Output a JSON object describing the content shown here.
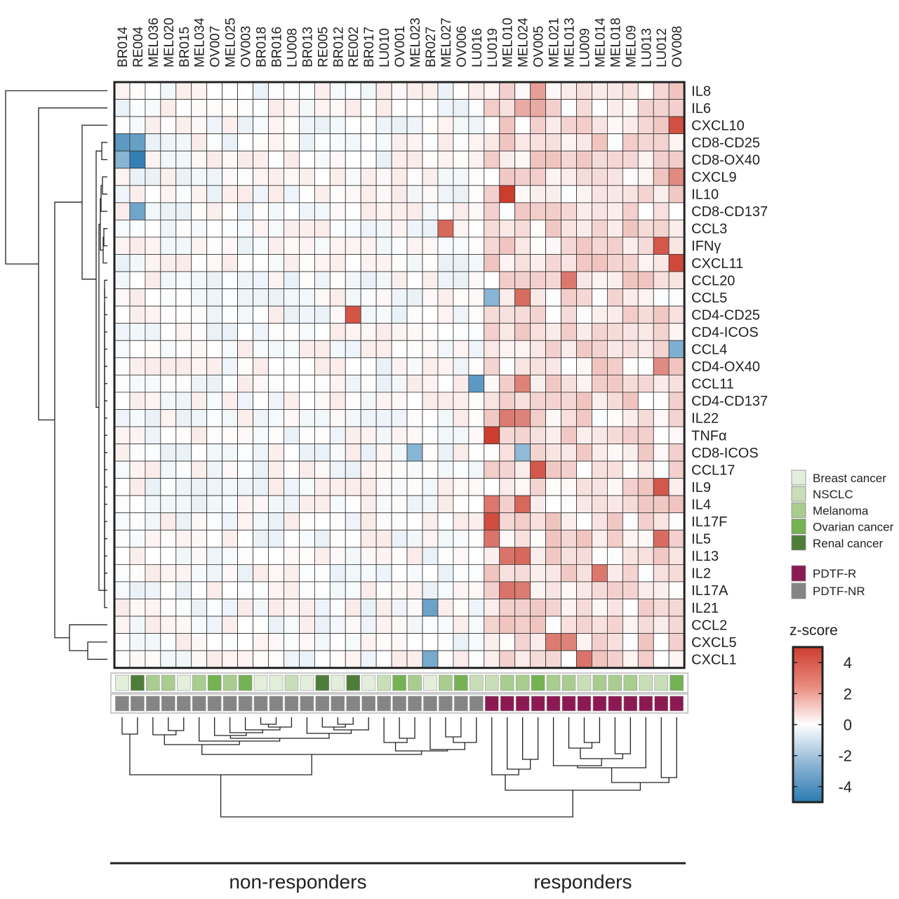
{
  "chart_data": {
    "type": "heatmap",
    "title": "",
    "samples": [
      "BR014",
      "RE004",
      "MEL036",
      "MEL020",
      "BR015",
      "MEL034",
      "OV007",
      "MEL025",
      "OV003",
      "BR018",
      "BR016",
      "LU008",
      "BR013",
      "RE005",
      "BR012",
      "RE002",
      "BR017",
      "LU010",
      "OV001",
      "MEL023",
      "BR027",
      "MEL027",
      "OV006",
      "LU016",
      "LU019",
      "MEL010",
      "MEL024",
      "OV005",
      "MEL021",
      "MEL013",
      "LU009",
      "MEL014",
      "MEL018",
      "MEL09",
      "LU013",
      "LU012",
      "OV008"
    ],
    "features": [
      "IL8",
      "IL6",
      "CXCL10",
      "CD8-CD25",
      "CD8-OX40",
      "CXCL9",
      "IL10",
      "CD8-CD137",
      "CCL3",
      "IFNγ",
      "CXCL11",
      "CCL20",
      "CCL5",
      "CD4-CD25",
      "CD4-ICOS",
      "CCL4",
      "CD4-OX40",
      "CCL11",
      "CD4-CD137",
      "IL22",
      "TNFα",
      "CD8-ICOS",
      "CCL17",
      "IL9",
      "IL4",
      "IL17F",
      "IL5",
      "IL13",
      "IL2",
      "IL17A",
      "IL21",
      "CCL2",
      "CXCL5",
      "CXCL1"
    ],
    "cancer_type": [
      "Breast cancer",
      "Renal cancer",
      "Melanoma",
      "Melanoma",
      "Breast cancer",
      "Melanoma",
      "Ovarian cancer",
      "Melanoma",
      "Ovarian cancer",
      "Breast cancer",
      "Breast cancer",
      "NSCLC",
      "Breast cancer",
      "Renal cancer",
      "Breast cancer",
      "Renal cancer",
      "Breast cancer",
      "NSCLC",
      "Ovarian cancer",
      "Melanoma",
      "Breast cancer",
      "Melanoma",
      "Ovarian cancer",
      "NSCLC",
      "NSCLC",
      "Melanoma",
      "Melanoma",
      "Ovarian cancer",
      "Melanoma",
      "Melanoma",
      "NSCLC",
      "Melanoma",
      "Melanoma",
      "Melanoma",
      "NSCLC",
      "NSCLC",
      "Ovarian cancer"
    ],
    "response": [
      "PDTF-NR",
      "PDTF-NR",
      "PDTF-NR",
      "PDTF-NR",
      "PDTF-NR",
      "PDTF-NR",
      "PDTF-NR",
      "PDTF-NR",
      "PDTF-NR",
      "PDTF-NR",
      "PDTF-NR",
      "PDTF-NR",
      "PDTF-NR",
      "PDTF-NR",
      "PDTF-NR",
      "PDTF-NR",
      "PDTF-NR",
      "PDTF-NR",
      "PDTF-NR",
      "PDTF-NR",
      "PDTF-NR",
      "PDTF-NR",
      "PDTF-NR",
      "PDTF-NR",
      "PDTF-R",
      "PDTF-R",
      "PDTF-R",
      "PDTF-R",
      "PDTF-R",
      "PDTF-R",
      "PDTF-R",
      "PDTF-R",
      "PDTF-R",
      "PDTF-R",
      "PDTF-R",
      "PDTF-R",
      "PDTF-R"
    ],
    "highlights": [
      {
        "feature": "IL8",
        "sample": "OV005",
        "value": 2.5
      },
      {
        "feature": "IL6",
        "sample": "MEL024",
        "value": 2.2
      },
      {
        "feature": "IL6",
        "sample": "OV005",
        "value": 2.2
      },
      {
        "feature": "CXCL10",
        "sample": "OV008",
        "value": 4.5
      },
      {
        "feature": "CD8-CD25",
        "sample": "BR014",
        "value": -3.8
      },
      {
        "feature": "CD8-CD25",
        "sample": "RE004",
        "value": -3.6
      },
      {
        "feature": "CD8-OX40",
        "sample": "BR014",
        "value": -2.8
      },
      {
        "feature": "CD8-OX40",
        "sample": "RE004",
        "value": -4.8
      },
      {
        "feature": "CXCL9",
        "sample": "OV008",
        "value": 3.0
      },
      {
        "feature": "IL10",
        "sample": "MEL010",
        "value": 5.0
      },
      {
        "feature": "CD8-CD137",
        "sample": "RE004",
        "value": -3.4
      },
      {
        "feature": "CCL3",
        "sample": "MEL027",
        "value": 3.9
      },
      {
        "feature": "IFNγ",
        "sample": "LU012",
        "value": 4.3
      },
      {
        "feature": "CXCL11",
        "sample": "OV008",
        "value": 4.7
      },
      {
        "feature": "CCL20",
        "sample": "MEL013",
        "value": 3.5
      },
      {
        "feature": "CCL5",
        "sample": "LU019",
        "value": -2.8
      },
      {
        "feature": "CCL5",
        "sample": "MEL024",
        "value": 3.8
      },
      {
        "feature": "CD4-CD25",
        "sample": "RE002",
        "value": 4.4
      },
      {
        "feature": "CCL4",
        "sample": "OV008",
        "value": -3.0
      },
      {
        "feature": "CD4-OX40",
        "sample": "LU012",
        "value": 3.0
      },
      {
        "feature": "CCL11",
        "sample": "LU016",
        "value": -3.8
      },
      {
        "feature": "CCL11",
        "sample": "MEL024",
        "value": 3.2
      },
      {
        "feature": "IL22",
        "sample": "MEL010",
        "value": 3.4
      },
      {
        "feature": "IL22",
        "sample": "MEL024",
        "value": 3.2
      },
      {
        "feature": "TNFα",
        "sample": "LU019",
        "value": 5.0
      },
      {
        "feature": "CD8-ICOS",
        "sample": "MEL023",
        "value": -2.8
      },
      {
        "feature": "CD8-ICOS",
        "sample": "MEL024",
        "value": -2.6
      },
      {
        "feature": "CCL17",
        "sample": "OV005",
        "value": 4.3
      },
      {
        "feature": "IL9",
        "sample": "LU012",
        "value": 4.3
      },
      {
        "feature": "IL4",
        "sample": "LU019",
        "value": 3.5
      },
      {
        "feature": "IL4",
        "sample": "MEL024",
        "value": 3.9
      },
      {
        "feature": "IL17F",
        "sample": "LU019",
        "value": 4.6
      },
      {
        "feature": "IL5",
        "sample": "LU019",
        "value": 3.6
      },
      {
        "feature": "IL5",
        "sample": "LU012",
        "value": 3.8
      },
      {
        "feature": "IL13",
        "sample": "MEL010",
        "value": 3.6
      },
      {
        "feature": "IL13",
        "sample": "MEL024",
        "value": 3.9
      },
      {
        "feature": "IL2",
        "sample": "MEL014",
        "value": 3.5
      },
      {
        "feature": "IL17A",
        "sample": "MEL010",
        "value": 3.6
      },
      {
        "feature": "IL17A",
        "sample": "MEL024",
        "value": 3.4
      },
      {
        "feature": "IL21",
        "sample": "BR027",
        "value": -3.5
      },
      {
        "feature": "CXCL5",
        "sample": "MEL021",
        "value": 3.4
      },
      {
        "feature": "CXCL5",
        "sample": "MEL013",
        "value": 3.2
      },
      {
        "feature": "CXCL1",
        "sample": "BR027",
        "value": -3.2
      },
      {
        "feature": "CXCL1",
        "sample": "LU009",
        "value": 3.6
      }
    ],
    "legend_cancer": [
      "Breast cancer",
      "NSCLC",
      "Melanoma",
      "Ovarian cancer",
      "Renal cancer"
    ],
    "legend_response": [
      "PDTF-R",
      "PDTF-NR"
    ],
    "colorbar": {
      "title": "z-score",
      "ticks": [
        "4",
        "2",
        "0",
        "-2",
        "-4"
      ],
      "range": [
        -5,
        5
      ]
    },
    "groups": [
      {
        "label": "non-responders",
        "from": "BR014",
        "to": "LU016"
      },
      {
        "label": "responders",
        "from": "LU019",
        "to": "OV008"
      }
    ],
    "colors": {
      "Breast cancer": "#e3eedb",
      "NSCLC": "#c8deb8",
      "Melanoma": "#a9cc8f",
      "Ovarian cancer": "#75b253",
      "Renal cancer": "#4e7d39",
      "PDTF-R": "#8c1a52",
      "PDTF-NR": "#858585",
      "scale_high": "#cc3d2e",
      "scale_mid": "#ffffff",
      "scale_low": "#2a7ab0"
    }
  }
}
